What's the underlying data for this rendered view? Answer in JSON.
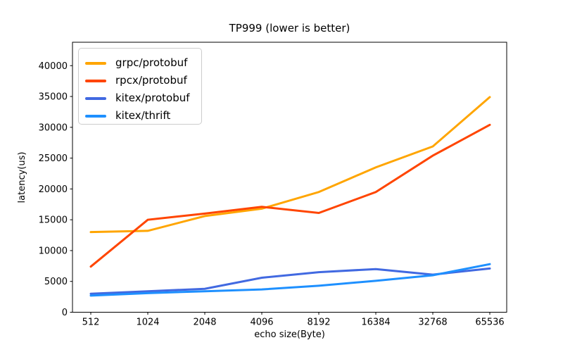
{
  "chart_data": {
    "type": "line",
    "title": "TP999 (lower is better)",
    "xlabel": "echo size(Byte)",
    "ylabel": "latency(us)",
    "categories": [
      "512",
      "1024",
      "2048",
      "4096",
      "8192",
      "16384",
      "32768",
      "65536"
    ],
    "y_ticks": [
      0,
      5000,
      10000,
      15000,
      20000,
      25000,
      30000,
      35000,
      40000
    ],
    "ylim": [
      0,
      43800
    ],
    "grid": false,
    "legend_position": "upper-left",
    "series": [
      {
        "name": "grpc/protobuf",
        "color": "#FFA500",
        "values": [
          13000,
          13200,
          15600,
          16800,
          19500,
          23500,
          26900,
          34900
        ]
      },
      {
        "name": "rpcx/protobuf",
        "color": "#FF4500",
        "values": [
          7400,
          15000,
          16000,
          17100,
          16100,
          19500,
          25400,
          30400
        ]
      },
      {
        "name": "kitex/protobuf",
        "color": "#4169E1",
        "values": [
          3000,
          3400,
          3800,
          5600,
          6500,
          7000,
          6100,
          7100
        ]
      },
      {
        "name": "kitex/thrift",
        "color": "#1E90FF",
        "values": [
          2700,
          3100,
          3400,
          3700,
          4300,
          5100,
          6000,
          7800
        ]
      }
    ]
  }
}
